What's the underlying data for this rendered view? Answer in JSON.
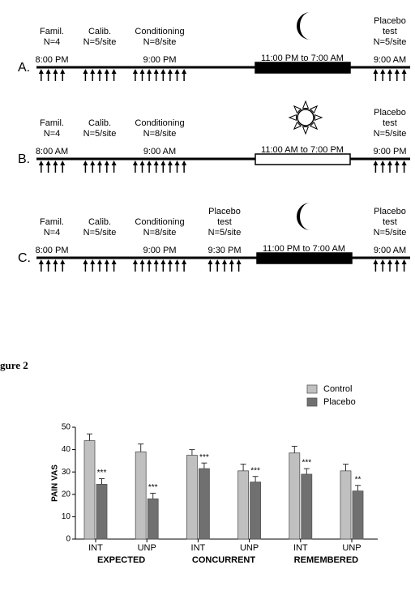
{
  "timelines": [
    {
      "label": "A.",
      "block": {
        "text": "11:00 PM to 7:00 AM",
        "fill": "#000000",
        "icon": "moon"
      },
      "events": [
        {
          "lines": [
            "Famil.",
            "N=4"
          ],
          "time": "8:00 PM",
          "arrows": 4
        },
        {
          "lines": [
            "Calib.",
            "N=5/site"
          ],
          "arrows": 5
        },
        {
          "lines": [
            "Conditioning",
            "N=8/site"
          ],
          "time": "9:00 PM",
          "arrows": 8
        },
        {
          "lines": [
            "Placebo",
            "test",
            "N=5/site"
          ],
          "time": "9:00 AM",
          "arrows": 5
        }
      ]
    },
    {
      "label": "B.",
      "block": {
        "text": "11:00 AM to 7:00 PM",
        "fill": "#ffffff",
        "icon": "sun"
      },
      "events": [
        {
          "lines": [
            "Famil.",
            "N=4"
          ],
          "time": "8:00 AM",
          "arrows": 4
        },
        {
          "lines": [
            "Calib.",
            "N=5/site"
          ],
          "arrows": 5
        },
        {
          "lines": [
            "Conditioning",
            "N=8/site"
          ],
          "time": "9:00 AM",
          "arrows": 8
        },
        {
          "lines": [
            "Placebo",
            "test",
            "N=5/site"
          ],
          "time": "9:00 PM",
          "arrows": 5
        }
      ]
    },
    {
      "label": "C.",
      "block": {
        "text": "11:00 PM to 7:00 AM",
        "fill": "#000000",
        "icon": "moon"
      },
      "events": [
        {
          "lines": [
            "Famil.",
            "N=4"
          ],
          "time": "8:00 PM",
          "arrows": 4
        },
        {
          "lines": [
            "Calib.",
            "N=5/site"
          ],
          "arrows": 5
        },
        {
          "lines": [
            "Conditioning",
            "N=8/site"
          ],
          "time": "9:00 PM",
          "arrows": 8
        },
        {
          "lines": [
            "Placebo",
            "test",
            "N=5/site"
          ],
          "time": "9:30 PM",
          "arrows": 5
        },
        {
          "lines": [
            "Placebo",
            "test",
            "N=5/site"
          ],
          "time": "9:00 AM",
          "arrows": 5
        }
      ]
    }
  ],
  "figure_label": "gure 2",
  "chart_data": {
    "type": "bar",
    "ylabel": "PAIN VAS",
    "categories": [
      "INT",
      "UNP",
      "INT",
      "UNP",
      "INT",
      "UNP"
    ],
    "groups": [
      "EXPECTED",
      "CONCURRENT",
      "REMEMBERED"
    ],
    "series": [
      {
        "name": "Control",
        "color": "#c0c0c0",
        "values": [
          44,
          39,
          37.5,
          30.5,
          38.5,
          30.5
        ],
        "errors": [
          3,
          3.5,
          2.5,
          3,
          3,
          3
        ]
      },
      {
        "name": "Placebo",
        "color": "#707070",
        "values": [
          24.5,
          18,
          31.5,
          25.5,
          29,
          21.5
        ],
        "errors": [
          2.5,
          2.5,
          2.5,
          2.5,
          2.5,
          2.5
        ],
        "significance": [
          "***",
          "***",
          "***",
          "***",
          "***",
          "**"
        ]
      }
    ],
    "ylim": [
      0,
      50
    ],
    "yticks": [
      0,
      10,
      20,
      30,
      40,
      50
    ]
  }
}
